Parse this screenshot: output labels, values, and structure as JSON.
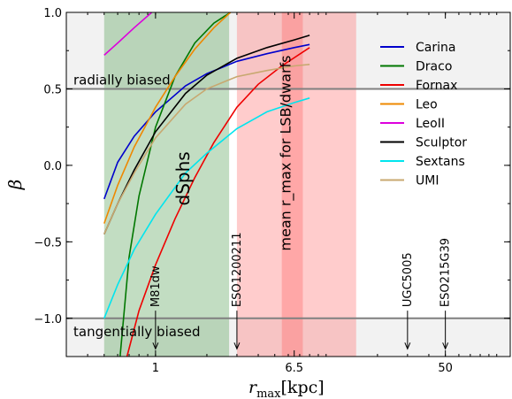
{
  "chart_data": {
    "type": "line",
    "xlabel_main": "r",
    "xlabel_sub": "max",
    "xlabel_unit": "[kpc]",
    "ylabel": "β",
    "xscale": "log",
    "xlim": [
      0.3,
      120
    ],
    "ylim": [
      -1.25,
      1.0
    ],
    "xticks": [
      {
        "value": 1,
        "label": "1"
      },
      {
        "value": 6.5,
        "label": "6.5"
      },
      {
        "value": 50,
        "label": "50"
      }
    ],
    "yticks": [
      {
        "value": 1.0,
        "label": "1.0"
      },
      {
        "value": 0.5,
        "label": "0.5"
      },
      {
        "value": 0.0,
        "label": "0.0"
      },
      {
        "value": -0.5,
        "label": "−0.5"
      },
      {
        "value": -1.0,
        "label": "−1.0"
      }
    ],
    "grid": false,
    "legend_position": "right",
    "bands": [
      {
        "x": [
          0.5,
          2.7
        ],
        "color": "#4f9f4f",
        "opacity": 0.35,
        "label": "dSphs"
      },
      {
        "x": [
          3.0,
          15.0
        ],
        "color": "#ff7f7f",
        "opacity": 0.4,
        "label": "mean r_max for LSB/dwarfs"
      },
      {
        "x": [
          5.5,
          7.3
        ],
        "color": "#ff6060",
        "opacity": 0.35,
        "label": ""
      }
    ],
    "gray_regions": [
      {
        "y": [
          0.5,
          1.0
        ],
        "color": "#d9d9d9",
        "opacity": 0.35
      },
      {
        "y": [
          -1.25,
          -1.0
        ],
        "color": "#d9d9d9",
        "opacity": 0.35
      }
    ],
    "hlines": [
      {
        "y": 0.5,
        "color": "#808080",
        "label": "radially biased"
      },
      {
        "y": -1.0,
        "color": "#808080",
        "label": "tangentially biased"
      }
    ],
    "arrows": [
      {
        "x": 1.0,
        "label": "M81dw"
      },
      {
        "x": 3.0,
        "label": "ESO1200211"
      },
      {
        "x": 30.0,
        "label": "UGC5005"
      },
      {
        "x": 50.0,
        "label": "ESO215G39"
      }
    ],
    "series": [
      {
        "name": "Carina",
        "color": "#0000cc",
        "x": [
          0.5,
          0.6,
          0.75,
          1.0,
          1.5,
          2.0,
          3.0,
          4.5,
          6.5,
          8.0
        ],
        "y": [
          -0.22,
          0.02,
          0.19,
          0.35,
          0.52,
          0.6,
          0.68,
          0.73,
          0.77,
          0.79
        ]
      },
      {
        "name": "Draco",
        "color": "#007700",
        "x": [
          0.62,
          0.7,
          0.8,
          1.0,
          1.3,
          1.7,
          2.2,
          2.75
        ],
        "y": [
          -1.25,
          -0.6,
          -0.2,
          0.25,
          0.58,
          0.8,
          0.93,
          1.0
        ]
      },
      {
        "name": "Fornax",
        "color": "#ee0000",
        "x": [
          0.68,
          0.8,
          1.0,
          1.3,
          1.7,
          2.2,
          3.0,
          4.0,
          5.5,
          8.0
        ],
        "y": [
          -1.25,
          -0.95,
          -0.65,
          -0.35,
          -0.08,
          0.15,
          0.38,
          0.53,
          0.65,
          0.77
        ]
      },
      {
        "name": "Leo",
        "color": "#ee8800",
        "x": [
          0.5,
          0.6,
          0.75,
          1.0,
          1.3,
          1.7,
          2.2,
          2.75
        ],
        "y": [
          -0.38,
          -0.13,
          0.12,
          0.38,
          0.58,
          0.76,
          0.9,
          1.0
        ]
      },
      {
        "name": "LeoII",
        "color": "#dd00dd",
        "x": [
          0.5,
          0.6,
          0.75,
          0.95
        ],
        "y": [
          0.72,
          0.8,
          0.9,
          1.0
        ]
      },
      {
        "name": "Sculptor",
        "color": "#000000",
        "x": [
          0.5,
          0.6,
          0.75,
          1.0,
          1.5,
          2.0,
          3.0,
          4.5,
          6.5,
          8.0
        ],
        "y": [
          -0.45,
          -0.25,
          -0.03,
          0.22,
          0.47,
          0.59,
          0.7,
          0.77,
          0.82,
          0.85
        ]
      },
      {
        "name": "Sextans",
        "color": "#00e5ee",
        "x": [
          0.5,
          0.6,
          0.75,
          1.0,
          1.5,
          2.0,
          3.0,
          4.5,
          6.5,
          8.0
        ],
        "y": [
          -1.0,
          -0.78,
          -0.55,
          -0.32,
          -0.05,
          0.08,
          0.24,
          0.35,
          0.41,
          0.44
        ]
      },
      {
        "name": "UMI",
        "color": "#c8a870",
        "x": [
          0.5,
          0.6,
          0.75,
          1.0,
          1.5,
          2.0,
          3.0,
          4.5,
          6.5,
          8.0
        ],
        "y": [
          -0.45,
          -0.25,
          -0.05,
          0.18,
          0.4,
          0.5,
          0.58,
          0.62,
          0.65,
          0.66
        ]
      }
    ]
  }
}
